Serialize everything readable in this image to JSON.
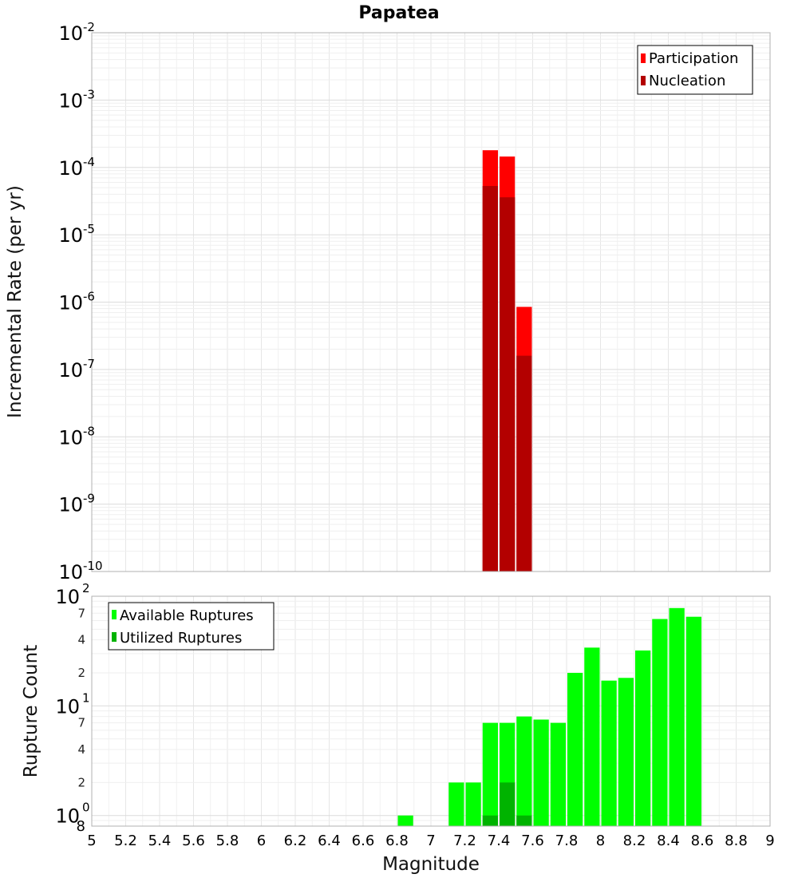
{
  "chart_data": [
    {
      "type": "bar",
      "title": "Papatea",
      "xlabel": "Magnitude",
      "ylabel": "Incremental Rate (per yr)",
      "yscale": "log",
      "ylim": [
        1e-10,
        0.01
      ],
      "xlim": [
        5,
        9
      ],
      "bin_width": 0.1,
      "y_ticks": [
        {
          "base": "10",
          "exp": "-10"
        },
        {
          "base": "10",
          "exp": "-9"
        },
        {
          "base": "10",
          "exp": "-8"
        },
        {
          "base": "10",
          "exp": "-7"
        },
        {
          "base": "10",
          "exp": "-6"
        },
        {
          "base": "10",
          "exp": "-5"
        },
        {
          "base": "10",
          "exp": "-4"
        },
        {
          "base": "10",
          "exp": "-3"
        },
        {
          "base": "10",
          "exp": "-2"
        }
      ],
      "legend": {
        "position": "top-right"
      },
      "series": [
        {
          "name": "Participation",
          "color": "#ff0000",
          "x": [
            7.35,
            7.45,
            7.55
          ],
          "values": [
            0.00018,
            0.000145,
            8.5e-07
          ]
        },
        {
          "name": "Nucleation",
          "color": "#b30000",
          "x": [
            7.35,
            7.45,
            7.55
          ],
          "values": [
            5.3e-05,
            3.6e-05,
            1.6e-07
          ]
        }
      ]
    },
    {
      "type": "bar",
      "xlabel": "Magnitude",
      "ylabel": "Rupture Count",
      "yscale": "log",
      "ylim": [
        0.8,
        100
      ],
      "xlim": [
        5,
        9
      ],
      "bin_width": 0.1,
      "x_ticks": [
        "5",
        "5.2",
        "5.4",
        "5.6",
        "5.8",
        "6",
        "6.2",
        "6.4",
        "6.6",
        "6.8",
        "7",
        "7.2",
        "7.4",
        "7.6",
        "7.8",
        "8",
        "8.2",
        "8.4",
        "8.6",
        "8.8",
        "9"
      ],
      "y_major_ticks": [
        {
          "value": 1,
          "base": "10",
          "exp": "0"
        },
        {
          "value": 10,
          "base": "10",
          "exp": "1"
        },
        {
          "value": 100,
          "base": "10",
          "exp": "2"
        }
      ],
      "y_minor_ticks": [
        {
          "value": 0.8,
          "label": "8"
        },
        {
          "value": 2,
          "label": "2"
        },
        {
          "value": 4,
          "label": "4"
        },
        {
          "value": 7,
          "label": "7"
        },
        {
          "value": 20,
          "label": "2"
        },
        {
          "value": 40,
          "label": "4"
        },
        {
          "value": 70,
          "label": "7"
        }
      ],
      "legend": {
        "position": "top-left"
      },
      "series": [
        {
          "name": "Available Ruptures",
          "color": "#00ff00",
          "x": [
            6.85,
            7.15,
            7.25,
            7.35,
            7.45,
            7.55,
            7.65,
            7.75,
            7.85,
            7.95,
            8.05,
            8.15,
            8.25,
            8.35,
            8.45,
            8.55
          ],
          "values": [
            1,
            2,
            2,
            7,
            7,
            8,
            7.5,
            7,
            20,
            34,
            17,
            18,
            32,
            62,
            78,
            65
          ]
        },
        {
          "name": "Utilized Ruptures",
          "color": "#00b300",
          "x": [
            7.35,
            7.45,
            7.55
          ],
          "values": [
            1,
            2,
            1
          ]
        }
      ]
    }
  ]
}
